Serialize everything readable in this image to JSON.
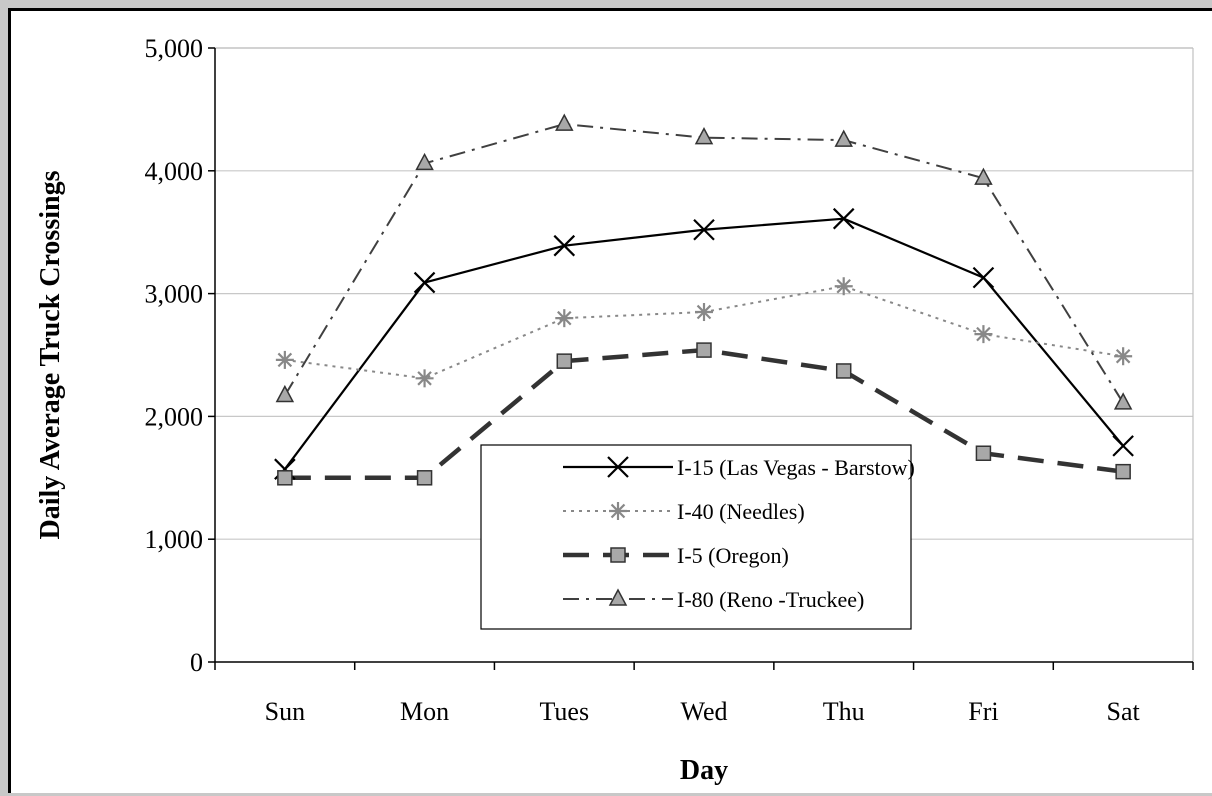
{
  "chart_data": {
    "type": "line",
    "title": "",
    "xlabel": "Day",
    "ylabel": "Daily Average Truck Crossings",
    "categories": [
      "Sun",
      "Mon",
      "Tues",
      "Wed",
      "Thu",
      "Fri",
      "Sat"
    ],
    "ylim": [
      0,
      5000
    ],
    "yticks": [
      0,
      1000,
      2000,
      3000,
      4000,
      5000
    ],
    "ytick_labels": [
      "0",
      "1,000",
      "2,000",
      "3,000",
      "4,000",
      "5,000"
    ],
    "grid": "horizontal",
    "legend_position": "center-bottom",
    "series": [
      {
        "name": "I-15 (Las Vegas - Barstow)",
        "values": [
          1570,
          3090,
          3390,
          3520,
          3610,
          3130,
          1760
        ],
        "color": "#000000",
        "marker": "x",
        "dash": "solid"
      },
      {
        "name": "I-40 (Needles)",
        "values": [
          2460,
          2310,
          2800,
          2850,
          3060,
          2670,
          2490
        ],
        "color": "#888888",
        "marker": "asterisk",
        "dash": "dotted"
      },
      {
        "name": "I-5 (Oregon)",
        "values": [
          1500,
          1500,
          2450,
          2540,
          2370,
          1700,
          1550
        ],
        "color": "#333333",
        "marker": "square",
        "dash": "dashed-thick"
      },
      {
        "name": "I-80 (Reno -Truckee)",
        "values": [
          2170,
          4060,
          4380,
          4270,
          4250,
          3940,
          2110
        ],
        "color": "#404040",
        "marker": "triangle",
        "dash": "dash-dot"
      }
    ]
  }
}
